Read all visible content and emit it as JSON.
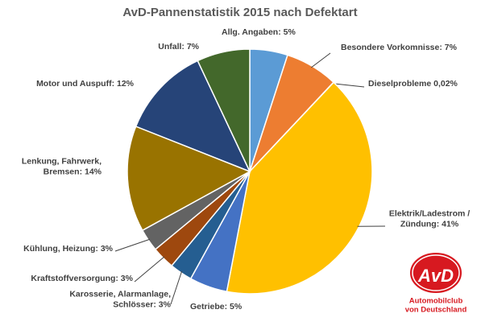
{
  "chart_data": {
    "type": "pie",
    "title": "AvD-Pannenstatistik 2015 nach Defektart",
    "values": [
      5,
      7,
      0.02,
      41,
      5,
      3,
      3,
      3,
      14,
      12,
      7
    ],
    "value_labels": [
      [
        "Allg. Angaben: 5%"
      ],
      [
        "Besondere Vorkomnisse: 7%"
      ],
      [
        "Dieselprobleme 0,02%"
      ],
      [
        "Elektrik/Ladestrom /",
        "Zündung: 41%"
      ],
      [
        "Getriebe: 5%"
      ],
      [
        "Karosserie, Alarmanlage,",
        "Schlösser: 3%"
      ],
      [
        "Kraftstoffversorgung: 3%"
      ],
      [
        "Kühlung, Heizung: 3%"
      ],
      [
        "Lenkung, Fahrwerk,",
        "Bremsen: 14%"
      ],
      [
        "Motor und Auspuff: 12%"
      ],
      [
        "Unfall: 7%"
      ]
    ],
    "colors": [
      "#5b9bd5",
      "#ed7d31",
      "#a5a5a5",
      "#ffc000",
      "#4472c4",
      "#255e91",
      "#9e480e",
      "#636363",
      "#997300",
      "#264478",
      "#43682b"
    ]
  },
  "logo": {
    "mark": "AvD",
    "caption": [
      "Automobilclub",
      "von Deutschland"
    ]
  }
}
